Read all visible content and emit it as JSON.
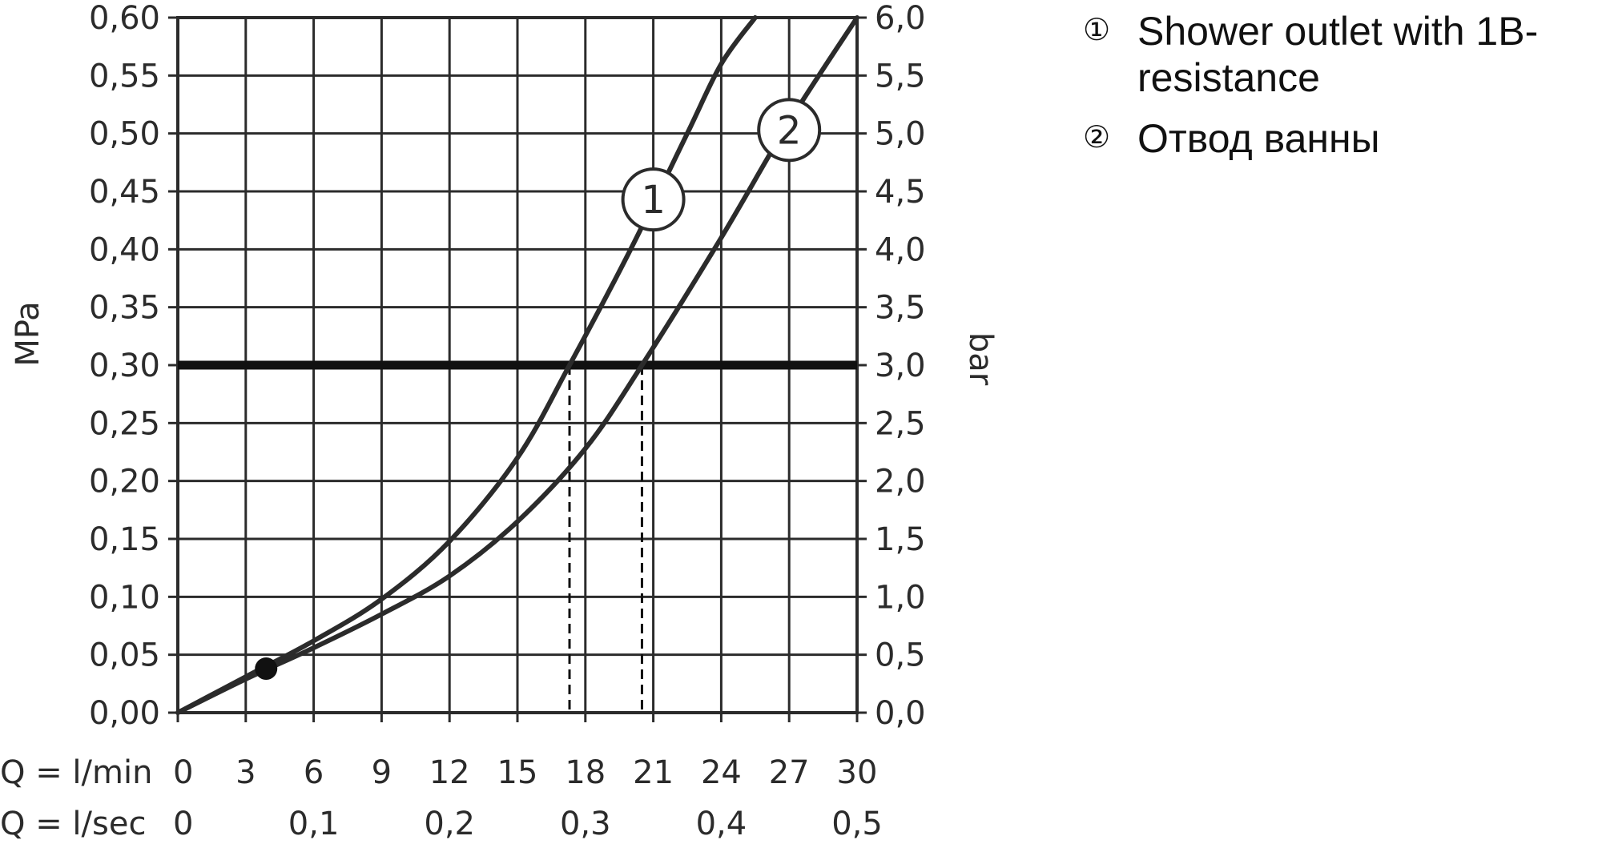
{
  "chart_data": {
    "type": "line",
    "title": "",
    "ylabel_left": "MPa",
    "ylabel_right": "bar",
    "xlim": [
      0,
      30
    ],
    "ylim": [
      0,
      0.6
    ],
    "y2lim": [
      0,
      6.0
    ],
    "grid": true,
    "x_ticks_min": [
      "0",
      "3",
      "6",
      "9",
      "12",
      "15",
      "18",
      "21",
      "24",
      "27",
      "30"
    ],
    "x_row_label_min": "Q = l/min",
    "x_row_label_sec": "Q = l/sec",
    "x_ticks_sec": [
      {
        "lmin": 0,
        "label": "0"
      },
      {
        "lmin": 6,
        "label": "0,1"
      },
      {
        "lmin": 12,
        "label": "0,2"
      },
      {
        "lmin": 18,
        "label": "0,3"
      },
      {
        "lmin": 24,
        "label": "0,4"
      },
      {
        "lmin": 30,
        "label": "0,5"
      }
    ],
    "y_ticks_left": [
      "0,00",
      "0,05",
      "0,10",
      "0,15",
      "0,20",
      "0,25",
      "0,30",
      "0,35",
      "0,40",
      "0,45",
      "0,50",
      "0,55",
      "0,60"
    ],
    "y_ticks_right": [
      "0,0",
      "0,5",
      "1,0",
      "1,5",
      "2,0",
      "2,5",
      "3,0",
      "3,5",
      "4,0",
      "4,5",
      "5,0",
      "5,5",
      "6,0"
    ],
    "reference_line": {
      "y": 0.3
    },
    "reference_drops": [
      {
        "series": "1",
        "x": 17.3,
        "y": 0.3
      },
      {
        "series": "2",
        "x": 20.5,
        "y": 0.3
      }
    ],
    "marker_point": {
      "x": 3.9,
      "y": 0.038
    },
    "series": [
      {
        "name": "1",
        "x": [
          0,
          3,
          6,
          9,
          12,
          15,
          17.3,
          20,
          22.5,
          24,
          25.5
        ],
        "y": [
          0,
          0.031,
          0.062,
          0.098,
          0.148,
          0.22,
          0.3,
          0.4,
          0.5,
          0.56,
          0.6
        ]
      },
      {
        "name": "2",
        "x": [
          0,
          3,
          6,
          9,
          12,
          15,
          18,
          20.5,
          24,
          27,
          30
        ],
        "y": [
          0,
          0.029,
          0.056,
          0.085,
          0.118,
          0.165,
          0.228,
          0.3,
          0.41,
          0.51,
          0.6
        ]
      }
    ],
    "labels": [
      {
        "series": "1",
        "text": "1",
        "x": 21.0,
        "y": 0.443
      },
      {
        "series": "2",
        "text": "2",
        "x": 27.0,
        "y": 0.503
      }
    ]
  },
  "legend": [
    {
      "marker": "①",
      "label": "Shower outlet with 1B-\nresistance"
    },
    {
      "marker": "②",
      "label": "Отвод ванны"
    }
  ]
}
